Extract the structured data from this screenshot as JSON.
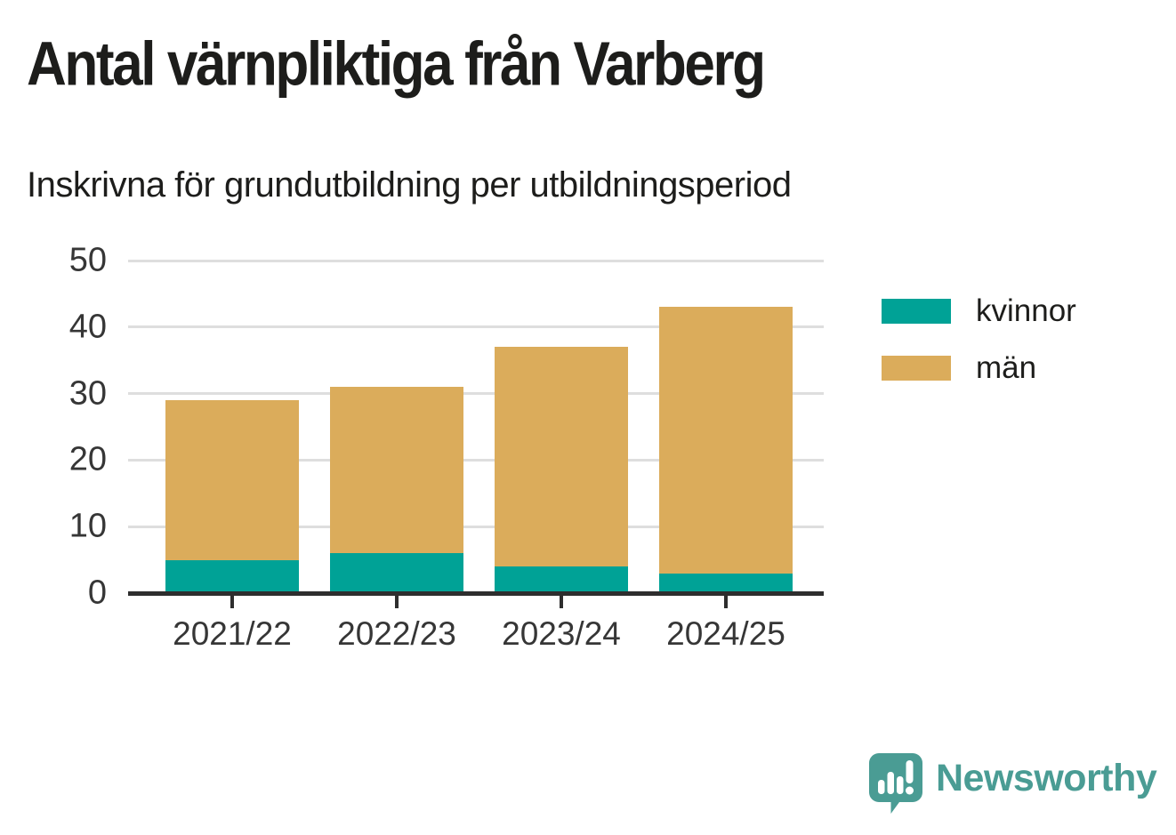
{
  "title": "Antal värnpliktiga från Varberg",
  "subtitle": "Inskrivna för grundutbildning per utbildningsperiod",
  "footer": {
    "brand": "Newsworthy",
    "brand_color": "#4a9c94"
  },
  "chart_data": {
    "type": "bar",
    "stacked": true,
    "title": "Antal värnpliktiga från Varberg",
    "subtitle": "Inskrivna för grundutbildning per utbildningsperiod",
    "categories": [
      "2021/22",
      "2022/23",
      "2023/24",
      "2024/25"
    ],
    "series": [
      {
        "name": "kvinnor",
        "color": "#00a296",
        "values": [
          5,
          6,
          4,
          3
        ]
      },
      {
        "name": "män",
        "color": "#dbac5b",
        "values": [
          24,
          25,
          33,
          40
        ]
      }
    ],
    "totals": [
      29,
      31,
      37,
      43
    ],
    "xlabel": "",
    "ylabel": "",
    "ylim": [
      0,
      50
    ],
    "yticks": [
      0,
      10,
      20,
      30,
      40,
      50
    ],
    "grid": true,
    "legend_position": "right",
    "grid_color": "#dedede",
    "axis_color": "#2e2e2e",
    "tick_label_color": "#363636"
  }
}
